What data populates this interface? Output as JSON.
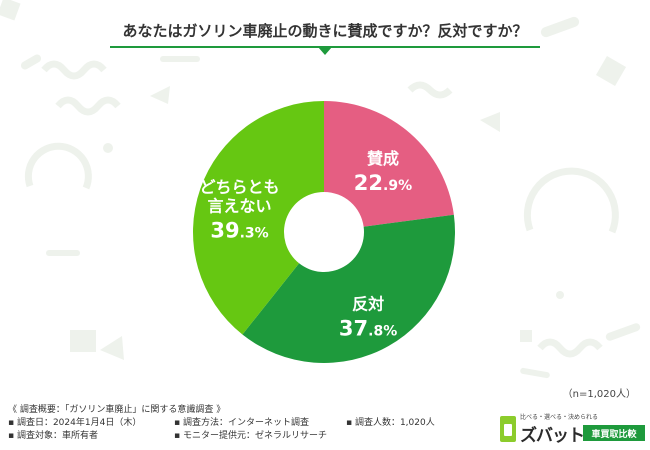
{
  "title": "あなたはガソリン車廃止の動きに賛成ですか？反対ですか？",
  "sample_size": "（n=1,020人）",
  "notes": {
    "overview": "《 調査概要：「ガソリン車廃止」に関する意識調査 》",
    "date": "▪ 調査日：2024年1月4日（木）",
    "method": "▪ 調査方法：インターネット調査",
    "count": "▪ 調査人数：1,020人",
    "target": "▪ 調査対象：車所有者",
    "provider": "▪ モニター提供元：ゼネラルリサーチ"
  },
  "logo": {
    "tagline": "比べる・選べる・決められる",
    "name": "ズバット",
    "sub": "車買取比較"
  },
  "chart_data": {
    "type": "pie",
    "donut": true,
    "unit": "%",
    "slices": [
      {
        "label": "賛成",
        "value": 22.9,
        "color": "#e55e82"
      },
      {
        "label": "反対",
        "value": 37.8,
        "color": "#1e9a3c"
      },
      {
        "label": "どちらとも言えない",
        "display_label": [
          "どちらとも",
          "言えない"
        ],
        "value": 39.3,
        "color": "#66c712"
      }
    ]
  }
}
